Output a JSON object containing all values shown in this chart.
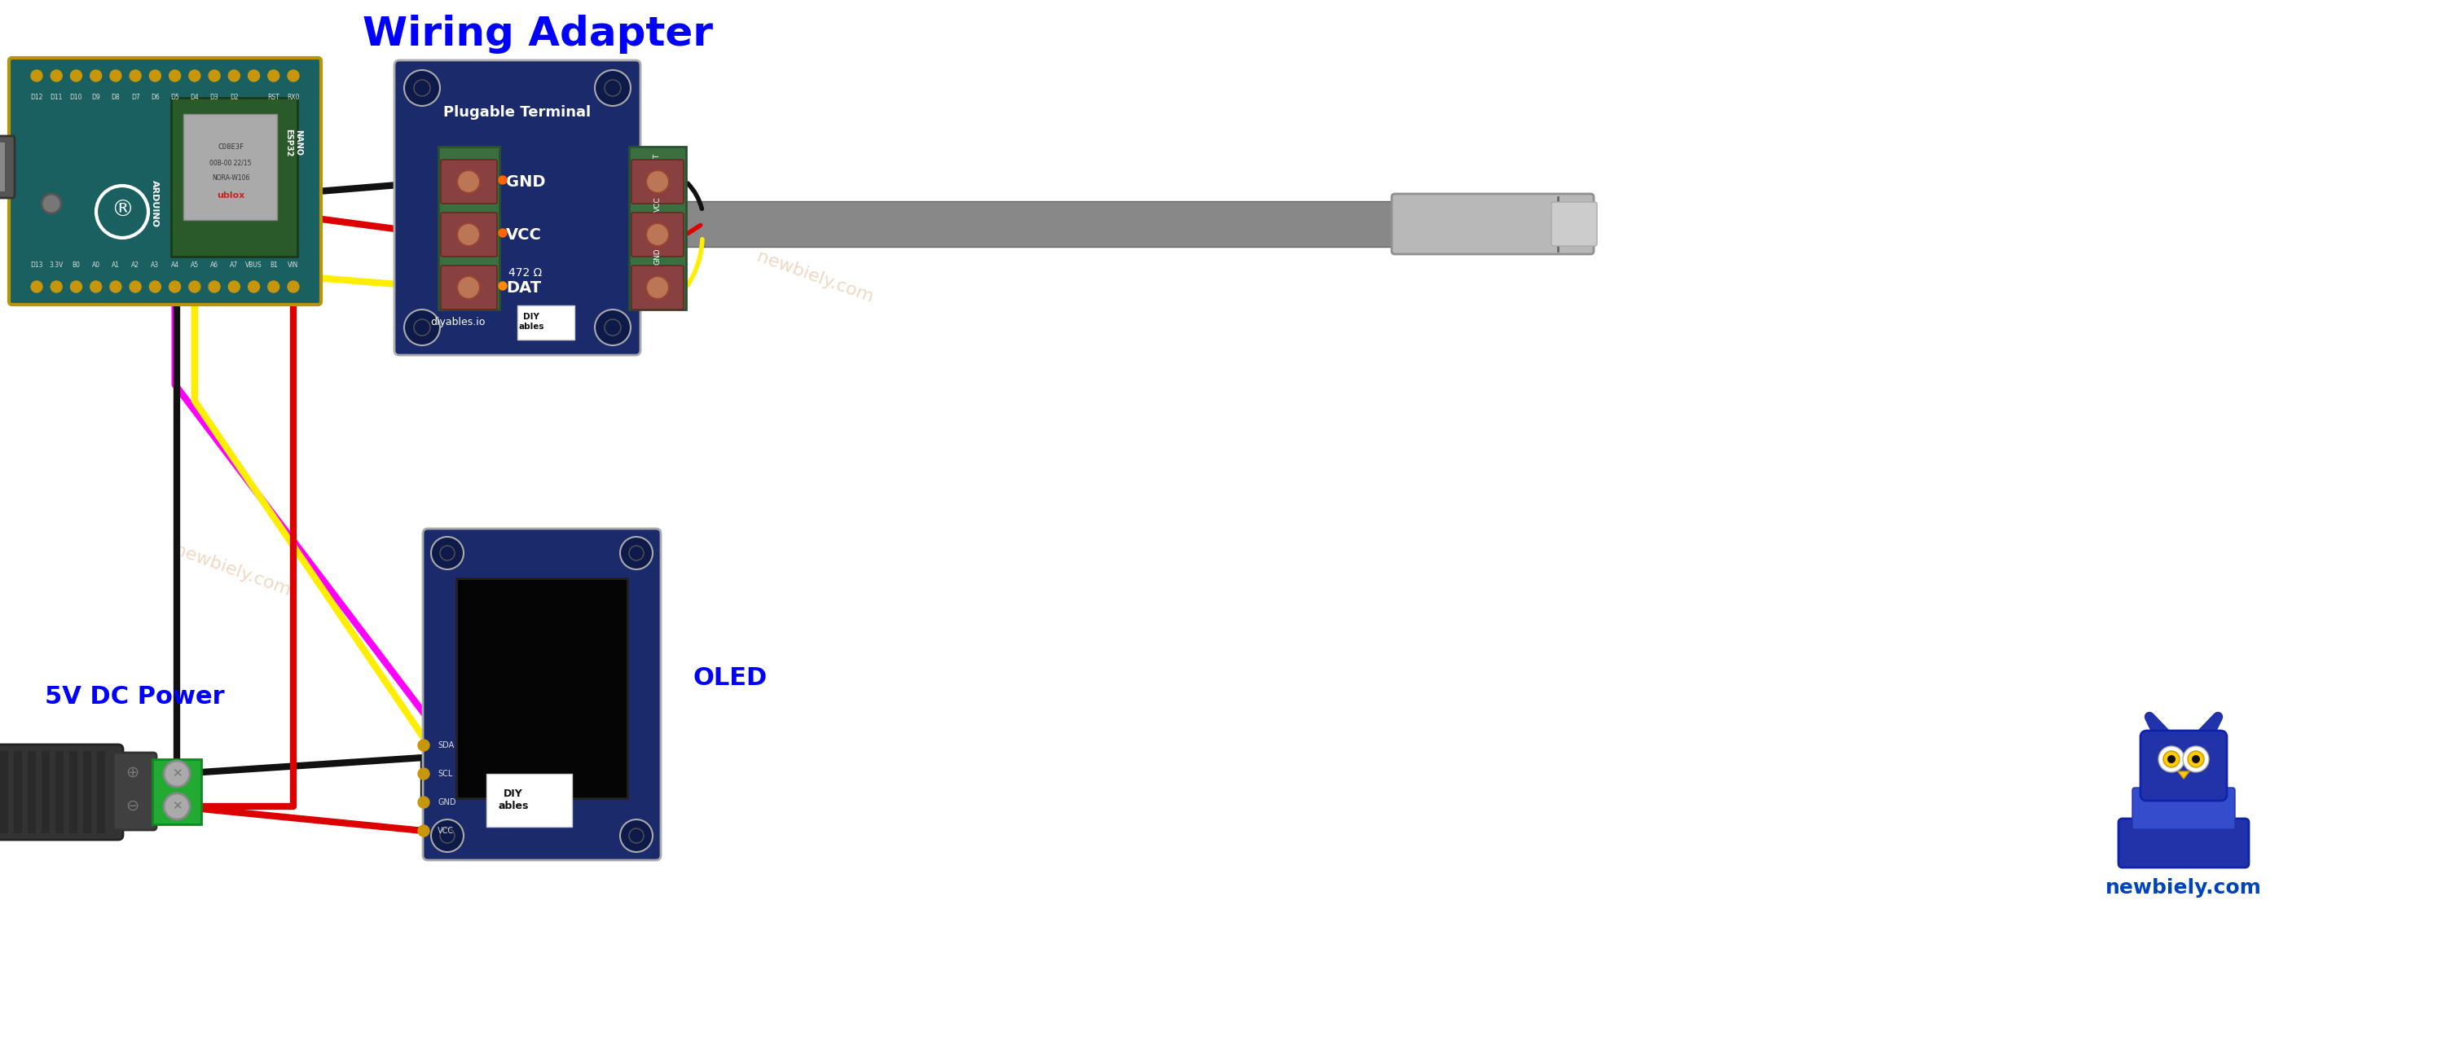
{
  "title": "Wiring Adapter",
  "title_color": "#0000FF",
  "title_fontsize": 36,
  "label_5v": "5V DC Power",
  "label_5v_color": "#0000FF",
  "label_oled": "OLED",
  "label_oled_color": "#0000FF",
  "label_newbiely": "newbiely.com",
  "label_newbiely_color": "#e8c8a8",
  "background_color": "#ffffff",
  "wire_colors": {
    "black": "#111111",
    "red": "#dd0000",
    "yellow": "#ffee00",
    "magenta": "#ff00ff",
    "green": "#00aa00",
    "orange": "#ff8800"
  },
  "adapter_board_color": "#1a2a6a",
  "arduino_board_color": "#1a6060",
  "oled_board_color": "#1a2a6a",
  "terminal_green": "#3a7a3a",
  "connector_red": "#cc3333"
}
